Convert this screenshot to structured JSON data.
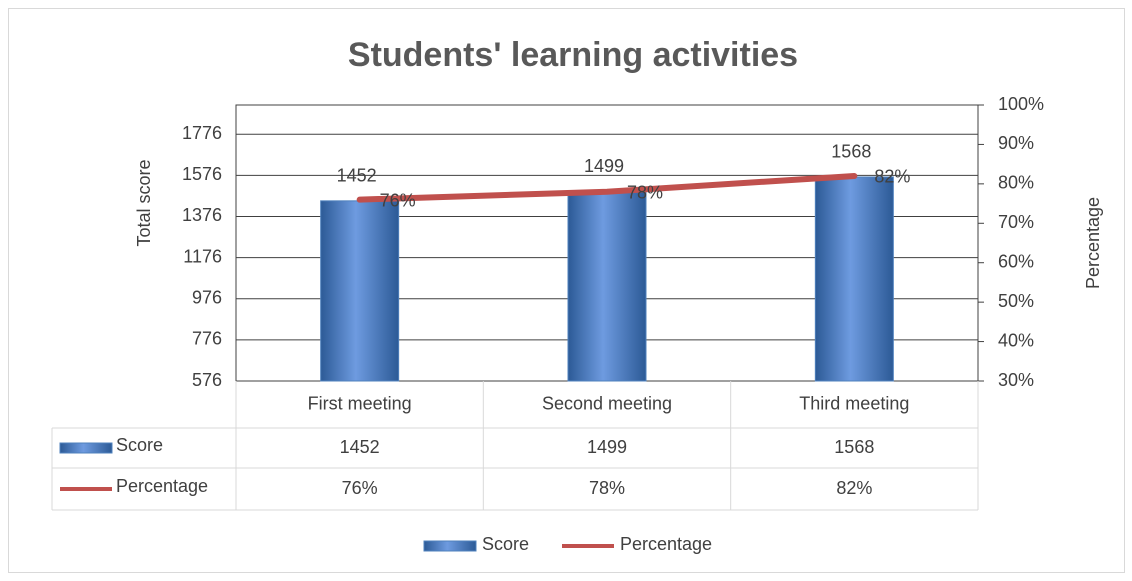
{
  "chart_data": {
    "type": "bar",
    "title": "Students' learning activities",
    "y_label": "Total score",
    "y2_label": "Percentage",
    "categories": [
      "First meeting",
      "Second meeting",
      "Third meeting"
    ],
    "series": [
      {
        "name": "Score",
        "type": "bar",
        "color": "#4f81bd",
        "values": [
          1452,
          1499,
          1568
        ]
      },
      {
        "name": "Percentage",
        "type": "line",
        "axis": "y2",
        "color": "#c0504d",
        "values": [
          76,
          78,
          82
        ],
        "value_labels": [
          "76%",
          "78%",
          "82%"
        ]
      }
    ],
    "ylim": [
      576,
      1918
    ],
    "yticks": [
      576,
      776,
      976,
      1176,
      1376,
      1576,
      1776
    ],
    "y2lim": [
      30,
      100
    ],
    "y2ticks": [
      {
        "value": 30,
        "label": "30%"
      },
      {
        "value": 40,
        "label": "40%"
      },
      {
        "value": 50,
        "label": "50%"
      },
      {
        "value": 60,
        "label": "60%"
      },
      {
        "value": 70,
        "label": "70%"
      },
      {
        "value": 80,
        "label": "80%"
      },
      {
        "value": 90,
        "label": "90%"
      },
      {
        "value": 100,
        "label": "100%"
      }
    ],
    "legend": "bottom",
    "data_table": true
  }
}
